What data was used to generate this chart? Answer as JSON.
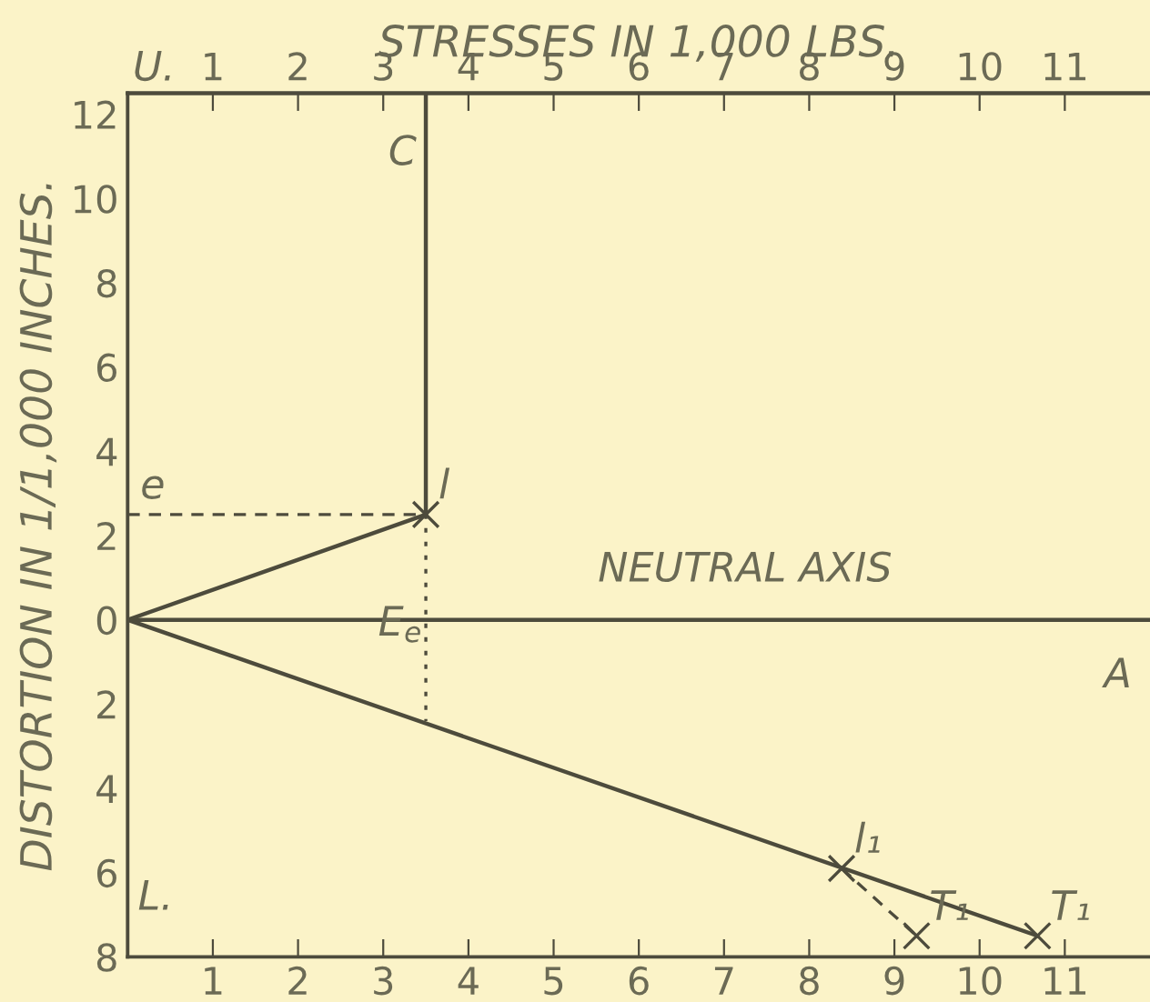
{
  "chart_data": {
    "type": "line",
    "x2label": "STRESSES IN 1,000 LBS.",
    "ylabel": "DISTORTION IN 1/1,000 INCHES.",
    "xlim": [
      0,
      12
    ],
    "ylim": [
      -8,
      12.5
    ],
    "xticks": [
      1,
      2,
      3,
      4,
      5,
      6,
      7,
      8,
      9,
      10,
      11
    ],
    "x2lim": [
      0,
      12
    ],
    "x2ticks": [
      1,
      2,
      3,
      4,
      5,
      6,
      7,
      8,
      9,
      10,
      11
    ],
    "yticks": [
      12,
      10,
      8,
      6,
      4,
      2,
      0,
      {
        "value": -2,
        "label": "2"
      },
      {
        "value": -4,
        "label": "4"
      },
      {
        "value": -6,
        "label": "6"
      },
      {
        "value": -8,
        "label": "8"
      }
    ],
    "grid": false,
    "legend": false,
    "series": [
      {
        "x": [
          0,
          3.5
        ],
        "values": [
          0,
          2.5
        ],
        "color": "#4d4b3c",
        "line_style": "solid",
        "marker": "none"
      },
      {
        "x": [
          3.5,
          3.5
        ],
        "values": [
          2.5,
          12.5
        ],
        "color": "#4d4b3c",
        "line_style": "solid",
        "marker": "none"
      },
      {
        "x": [
          0,
          12
        ],
        "values": [
          0,
          0
        ],
        "color": "#4d4b3c",
        "line_style": "solid",
        "marker": "none"
      },
      {
        "x": [
          0,
          10.68
        ],
        "values": [
          0,
          -7.5
        ],
        "color": "#4d4b3c",
        "line_style": "solid",
        "marker": "none"
      },
      {
        "x": [
          0,
          3.5
        ],
        "values": [
          2.5,
          2.5
        ],
        "color": "#4d4b3c",
        "line_style": "dashed",
        "marker": "none"
      },
      {
        "x": [
          3.5,
          3.5
        ],
        "values": [
          2.5,
          -2.4
        ],
        "color": "#4d4b3c",
        "line_style": "dotted",
        "marker": "none"
      },
      {
        "x": [
          8.38,
          9.26
        ],
        "values": [
          -5.9,
          -7.5
        ],
        "color": "#4d4b3c",
        "line_style": "dashed",
        "marker": "none"
      },
      {
        "type": "scatter",
        "x": [
          3.5,
          8.38,
          9.26,
          10.68
        ],
        "values": [
          2.5,
          -5.9,
          -7.5,
          -7.5
        ],
        "color": "#4d4b3c",
        "marker": "cross"
      }
    ],
    "annotations": [
      "U.",
      "C",
      {
        "text": "e",
        "x": 0,
        "y": 2.5
      },
      {
        "text": "l",
        "x": 3.5,
        "y": 2.5
      },
      "NEUTRAL AXIS",
      "E$_{e}$",
      "A",
      {
        "text": "l₁",
        "x": 8.38,
        "y": -5.9
      },
      "L.",
      {
        "text": "T₁",
        "x": 9.26,
        "y": -7.5
      },
      {
        "text": "T₁",
        "x": 10.68,
        "y": -7.5
      }
    ]
  }
}
